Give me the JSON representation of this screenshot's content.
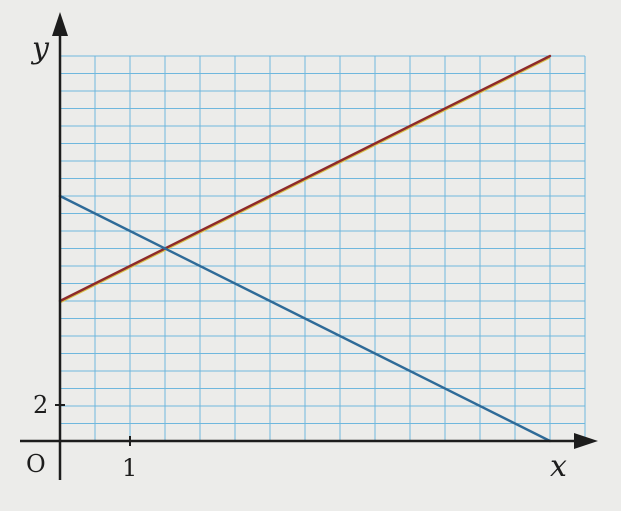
{
  "chart_data": {
    "type": "line",
    "xlabel": "x",
    "ylabel": "y",
    "origin_label": "O",
    "x_tick_labels": [
      {
        "value": 1,
        "text": "1"
      }
    ],
    "y_tick_labels": [
      {
        "value": 2,
        "text": "2"
      }
    ],
    "xlim": [
      0,
      7.5
    ],
    "ylim": [
      0,
      22
    ],
    "grid": true,
    "grid_step": {
      "x": 0.5,
      "y": 1
    },
    "series": [
      {
        "points": [
          [
            0,
            8
          ],
          [
            7,
            22
          ]
        ],
        "color": "#8e2a2a",
        "highlight": "#d9c24a"
      },
      {
        "points": [
          [
            0,
            14
          ],
          [
            7,
            0
          ]
        ],
        "color": "#2f6b98"
      }
    ]
  },
  "colors": {
    "paper": "#ececea",
    "grid": "#6fb7dd",
    "axis": "#1d1d1d"
  }
}
